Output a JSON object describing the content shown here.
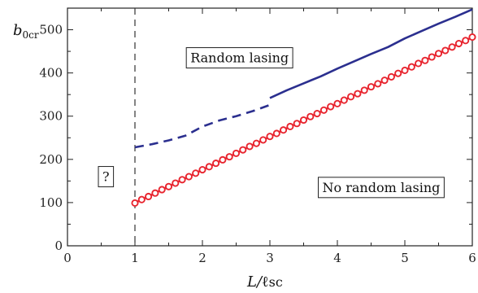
{
  "chart_data": {
    "type": "line",
    "title": "",
    "xlabel": {
      "main": "L/",
      "sub": "sc",
      "script_l": "ℓ"
    },
    "ylabel": {
      "main": "b",
      "sub": "0cr"
    },
    "xlim": [
      0,
      6
    ],
    "ylim": [
      0,
      550
    ],
    "x_ticks": [
      0,
      1,
      2,
      3,
      4,
      5,
      6
    ],
    "y_ticks": [
      0,
      100,
      200,
      300,
      400,
      500
    ],
    "x_tick_labels": [
      "0",
      "1",
      "2",
      "3",
      "4",
      "5",
      "6"
    ],
    "y_tick_labels": [
      "0",
      "100",
      "200",
      "300",
      "400",
      "500"
    ],
    "grid": false,
    "vertical_reference_line": {
      "x": 1,
      "style": "dashed",
      "color": "#333333"
    },
    "series": [
      {
        "style": "dashed",
        "color": "#2b2f8f",
        "x": [
          1.0,
          1.25,
          1.5,
          1.75,
          2.0,
          2.25,
          2.5,
          2.75,
          3.0
        ],
        "y": [
          228,
          235,
          244,
          255,
          276,
          290,
          300,
          312,
          326
        ]
      },
      {
        "style": "solid",
        "color": "#2b2f8f",
        "x": [
          3.0,
          3.25,
          3.5,
          3.75,
          4.0,
          4.25,
          4.5,
          4.75,
          5.0,
          5.25,
          5.5,
          5.75,
          6.0
        ],
        "y": [
          342,
          360,
          376,
          392,
          410,
          427,
          444,
          460,
          480,
          497,
          514,
          530,
          547
        ]
      },
      {
        "style": "line+markers",
        "color": "#e8252f",
        "marker": "circle-open",
        "x": [
          1.0,
          1.1,
          1.2,
          1.3,
          1.4,
          1.5,
          1.6,
          1.7,
          1.8,
          1.9,
          2.0,
          2.1,
          2.2,
          2.3,
          2.4,
          2.5,
          2.6,
          2.7,
          2.8,
          2.9,
          3.0,
          3.1,
          3.2,
          3.3,
          3.4,
          3.5,
          3.6,
          3.7,
          3.8,
          3.9,
          4.0,
          4.1,
          4.2,
          4.3,
          4.4,
          4.5,
          4.6,
          4.7,
          4.8,
          4.9,
          5.0,
          5.1,
          5.2,
          5.3,
          5.4,
          5.5,
          5.6,
          5.7,
          5.8,
          5.9,
          6.0
        ],
        "y": [
          99,
          107,
          114,
          122,
          130,
          137,
          145,
          153,
          160,
          168,
          176,
          183,
          191,
          199,
          206,
          214,
          222,
          230,
          237,
          245,
          253,
          260,
          268,
          276,
          283,
          291,
          299,
          306,
          314,
          322,
          329,
          337,
          345,
          352,
          360,
          368,
          375,
          383,
          391,
          399,
          406,
          414,
          422,
          429,
          437,
          445,
          452,
          460,
          468,
          475,
          483
        ]
      }
    ],
    "annotations": [
      {
        "text": "Random lasing",
        "x": 2.55,
        "y": 435
      },
      {
        "text": "No random lasing",
        "x": 4.65,
        "y": 135
      },
      {
        "text": "?",
        "x": 0.57,
        "y": 160
      }
    ]
  }
}
